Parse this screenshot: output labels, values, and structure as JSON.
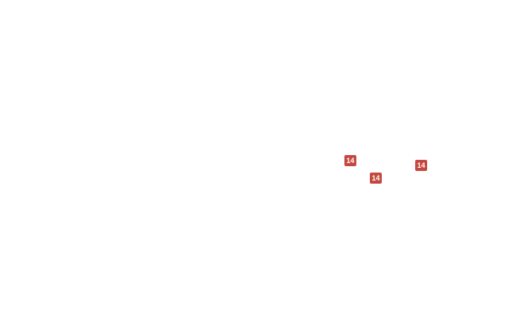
{
  "map": {
    "description": "blank white map canvas with cluster markers"
  },
  "markers": [
    {
      "count": "14"
    },
    {
      "count": "14"
    },
    {
      "count": "14"
    }
  ],
  "colors": {
    "badge_background": "#c5483f",
    "badge_text": "#ffffff",
    "canvas_background": "#ffffff"
  }
}
